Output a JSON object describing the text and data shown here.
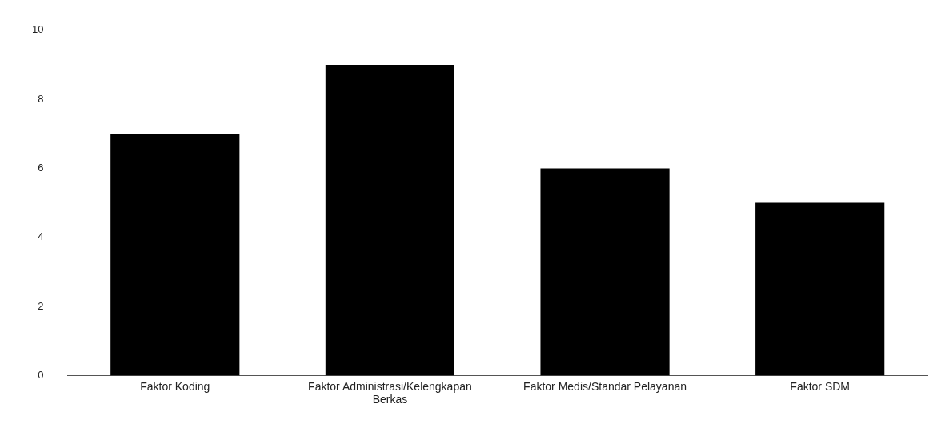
{
  "chart_data": {
    "type": "bar",
    "categories": [
      "Faktor Koding",
      "Faktor Administrasi/Kelengkapan Berkas",
      "Faktor Medis/Standar Pelayanan",
      "Faktor SDM"
    ],
    "values": [
      7,
      9,
      6,
      5
    ],
    "color": "#000000",
    "ylim": [
      0,
      10
    ],
    "yticks": [
      0,
      2,
      4,
      6,
      8,
      10
    ],
    "grid": false,
    "legend": false
  }
}
